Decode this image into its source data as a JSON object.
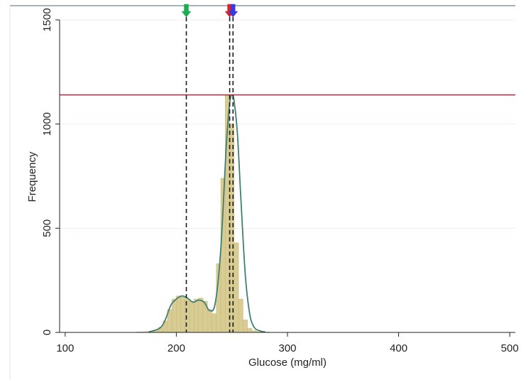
{
  "chart_data": {
    "type": "bar",
    "title": "",
    "xlabel": "Glucose (mg/ml)",
    "ylabel": "Frequency",
    "xlim": [
      95,
      505
    ],
    "ylim": [
      0,
      1500
    ],
    "x_ticks": [
      100,
      200,
      300,
      400,
      500
    ],
    "y_ticks": [
      0,
      500,
      1000,
      1500
    ],
    "x_tick_labels": [
      "100",
      "200",
      "300",
      "400",
      "500"
    ],
    "y_tick_labels": [
      "0",
      "500",
      "1000",
      "1500"
    ],
    "grid": true,
    "legend": "none",
    "bin_width": 4,
    "histogram": {
      "bin_starts": [
        164,
        168,
        172,
        176,
        180,
        184,
        188,
        192,
        196,
        200,
        204,
        208,
        212,
        216,
        220,
        224,
        228,
        232,
        236,
        240,
        244,
        248,
        252,
        256,
        260,
        264,
        268,
        272,
        276,
        280,
        284,
        288
      ],
      "values": [
        2,
        3,
        4,
        6,
        10,
        25,
        55,
        110,
        160,
        175,
        170,
        160,
        150,
        160,
        165,
        150,
        110,
        90,
        330,
        740,
        1140,
        1000,
        430,
        160,
        60,
        20,
        8,
        4,
        3,
        2,
        1,
        1
      ]
    },
    "density_curve": {
      "x": [
        175,
        185,
        190,
        195,
        200,
        205,
        210,
        215,
        220,
        225,
        230,
        235,
        240,
        245,
        248,
        250,
        252,
        255,
        258,
        262,
        266,
        270,
        275,
        280
      ],
      "y": [
        2,
        20,
        60,
        130,
        160,
        175,
        165,
        145,
        155,
        145,
        105,
        140,
        400,
        900,
        1100,
        1140,
        1110,
        950,
        650,
        280,
        90,
        25,
        8,
        2
      ]
    },
    "reference_lines": {
      "horizontal_y": 1140,
      "vertical_x": [
        209,
        248,
        251
      ]
    },
    "markers": [
      {
        "x": 209,
        "color": "#1faa55"
      },
      {
        "x": 248,
        "color": "#e0201f"
      },
      {
        "x": 251,
        "color": "#3a3adf"
      }
    ],
    "colors": {
      "bars": "#d8cc93",
      "bar_stroke": "#c6b97c",
      "curve": "#3f7f74",
      "horizontal_line": "#c0243a",
      "vertical_lines": "#1a1a1a",
      "grid": "#e8eef0",
      "frame": "#4a6b7a"
    }
  }
}
